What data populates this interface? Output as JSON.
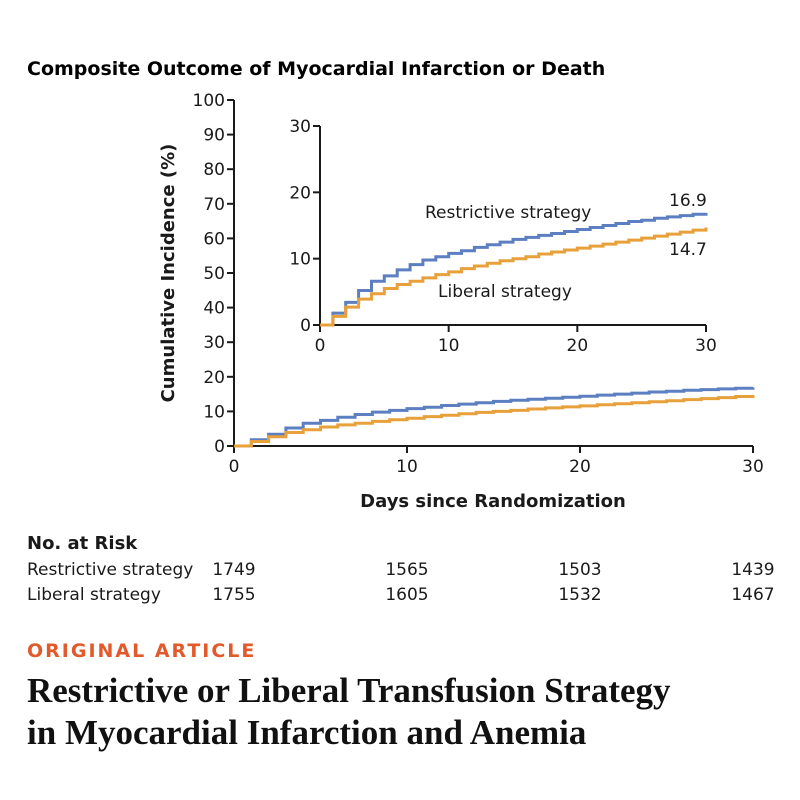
{
  "chart_data": {
    "type": "line",
    "title": "Composite Outcome of Myocardial Infarction or Death",
    "xlabel": "Days since Randomization",
    "ylabel": "Cumulative Incidence (%)",
    "xlim": [
      0,
      30
    ],
    "ylim": [
      0,
      100
    ],
    "xticks": [
      0,
      10,
      20,
      30
    ],
    "yticks": [
      0,
      10,
      20,
      30,
      40,
      50,
      60,
      70,
      80,
      90,
      100
    ],
    "colors": {
      "restrictive": "#5b7fc1",
      "liberal": "#e8a13a"
    },
    "series": [
      {
        "name": "Restrictive strategy",
        "key": "restrictive",
        "end_label": "16.9",
        "x": [
          0,
          1,
          2,
          3,
          4,
          5,
          6,
          7,
          8,
          9,
          10,
          11,
          12,
          13,
          14,
          15,
          16,
          17,
          18,
          19,
          20,
          21,
          22,
          23,
          24,
          25,
          26,
          27,
          28,
          29,
          30
        ],
        "y": [
          0,
          1.8,
          3.4,
          5.2,
          6.6,
          7.4,
          8.3,
          9.1,
          9.8,
          10.3,
          10.8,
          11.2,
          11.7,
          12.1,
          12.5,
          12.9,
          13.2,
          13.5,
          13.8,
          14.1,
          14.4,
          14.7,
          15.0,
          15.3,
          15.6,
          15.8,
          16.1,
          16.3,
          16.5,
          16.7,
          16.9
        ]
      },
      {
        "name": "Liberal strategy",
        "key": "liberal",
        "end_label": "14.7",
        "x": [
          0,
          1,
          2,
          3,
          4,
          5,
          6,
          7,
          8,
          9,
          10,
          11,
          12,
          13,
          14,
          15,
          16,
          17,
          18,
          19,
          20,
          21,
          22,
          23,
          24,
          25,
          26,
          27,
          28,
          29,
          30
        ],
        "y": [
          0,
          1.3,
          2.7,
          3.9,
          4.7,
          5.5,
          6.1,
          6.6,
          7.1,
          7.6,
          8.0,
          8.5,
          8.9,
          9.3,
          9.7,
          10.0,
          10.3,
          10.7,
          11.0,
          11.3,
          11.6,
          11.9,
          12.2,
          12.5,
          12.8,
          13.1,
          13.4,
          13.7,
          14.0,
          14.3,
          14.7
        ]
      }
    ],
    "inset": {
      "xlim": [
        0,
        30
      ],
      "ylim": [
        0,
        30
      ],
      "xticks": [
        0,
        10,
        20,
        30
      ],
      "yticks": [
        0,
        10,
        20,
        30
      ]
    }
  },
  "risk_table": {
    "heading": "No. at Risk",
    "rows": [
      {
        "label": "Restrictive strategy",
        "values": [
          "1749",
          "1565",
          "1503",
          "1439"
        ]
      },
      {
        "label": "Liberal strategy",
        "values": [
          "1755",
          "1605",
          "1532",
          "1467"
        ]
      }
    ]
  },
  "article": {
    "label": "ORIGINAL ARTICLE",
    "title_line1": "Restrictive or Liberal Transfusion Strategy",
    "title_line2": "in Myocardial Infarction and Anemia"
  }
}
